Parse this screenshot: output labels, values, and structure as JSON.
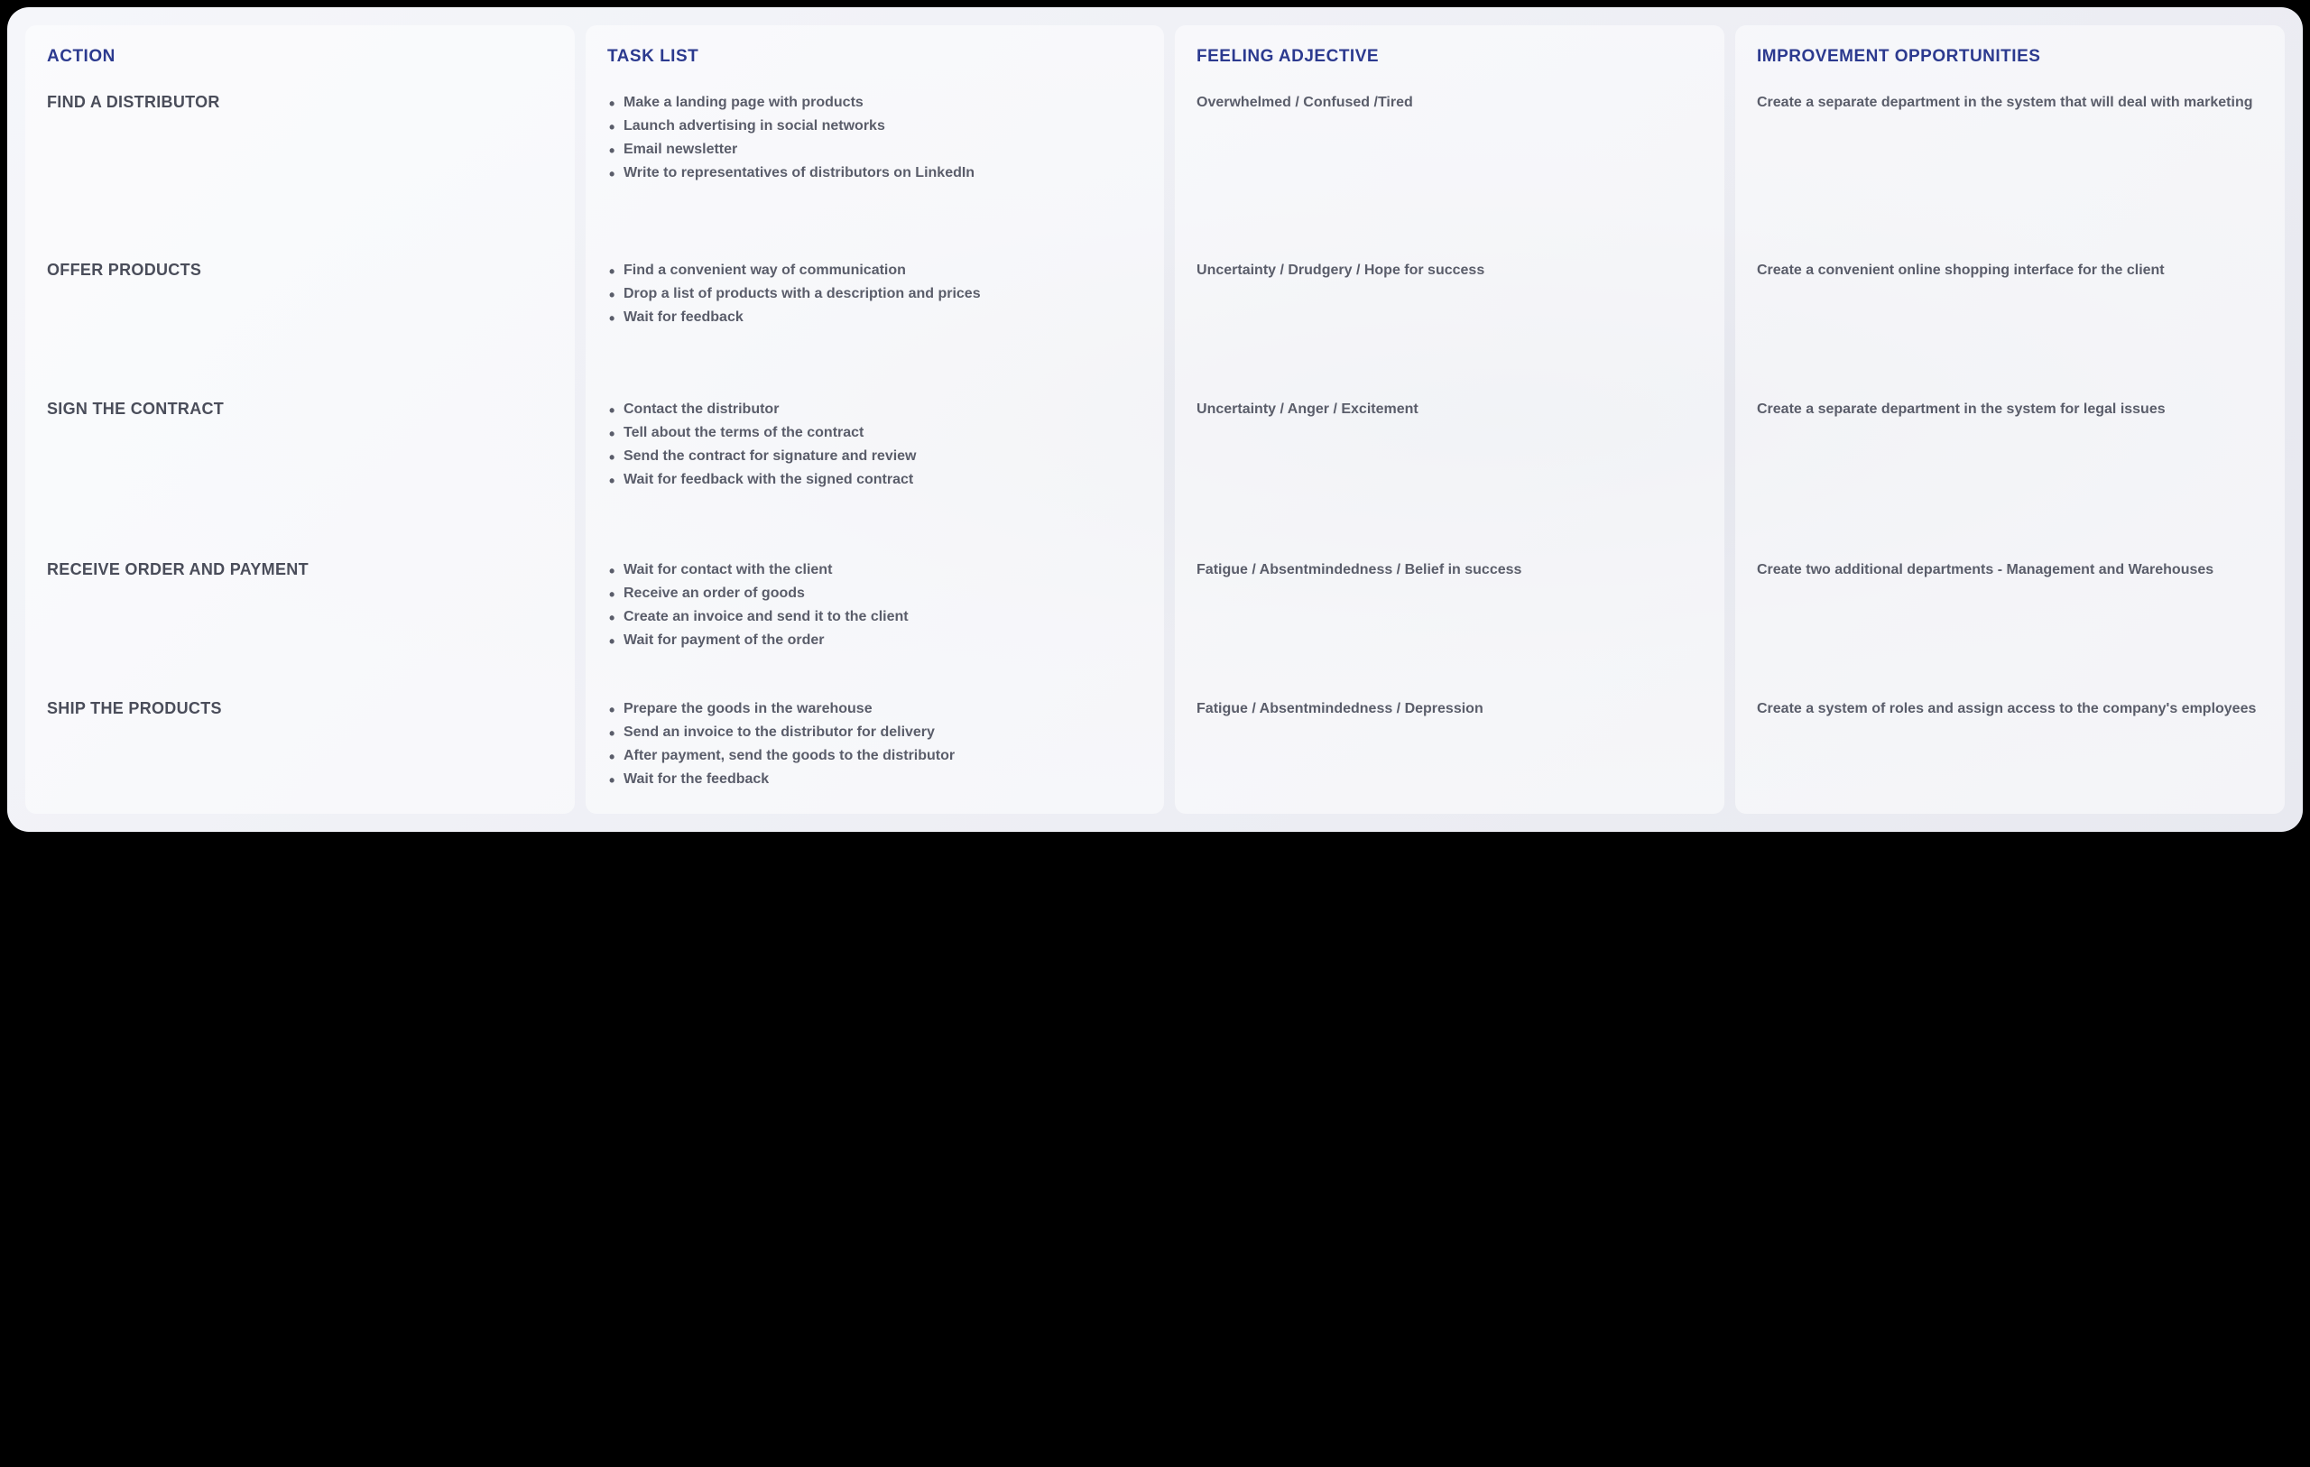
{
  "headers": {
    "action": "ACTION",
    "tasks": "TASK LIST",
    "feeling": "FEELING ADJECTIVE",
    "improvement": "IMPROVEMENT OPPORTUNITIES"
  },
  "rows": [
    {
      "action": "FIND A DISTRIBUTOR",
      "tasks": [
        "Make a landing page with products",
        "Launch advertising in social networks",
        "Email newsletter",
        "Write to representatives of distributors on LinkedIn"
      ],
      "feeling": "Overwhelmed / Confused /Tired",
      "improvement": "Create a separate department in the system that will deal with marketing"
    },
    {
      "action": "OFFER PRODUCTS",
      "tasks": [
        "Find a convenient way of communication",
        "Drop a list of products with a description and prices",
        "Wait for feedback"
      ],
      "feeling": "Uncertainty / Drudgery / Hope for success",
      "improvement": "Create a convenient online shopping interface for the client"
    },
    {
      "action": "SIGN THE CONTRACT",
      "tasks": [
        "Contact the distributor",
        "Tell about the terms of the contract",
        "Send the contract for signature and review",
        "Wait for feedback with the signed contract"
      ],
      "feeling": "Uncertainty / Anger / Excitement",
      "improvement": "Create a separate department in the system for legal issues"
    },
    {
      "action": "RECEIVE ORDER AND PAYMENT",
      "tasks": [
        "Wait for contact with the client",
        "Receive an order of goods",
        "Create an invoice and send it to the client",
        "Wait for payment of the order"
      ],
      "feeling": "Fatigue / Absentmindedness / Belief in success",
      "improvement": "Create two additional departments - Management and Warehouses"
    },
    {
      "action": "SHIP THE PRODUCTS",
      "tasks": [
        "Prepare the goods in the warehouse",
        "Send an invoice to the distributor for delivery",
        "After payment, send the goods to the distributor",
        "Wait for the feedback"
      ],
      "feeling": "Fatigue / Absentmindedness / Depression",
      "improvement": "Create a system of roles and assign access to the company's employees"
    }
  ],
  "styling": {
    "header_color": "#2c3a8f",
    "text_color": "#5a5d6a",
    "action_color": "#4a4d5a",
    "background": "#f5f6fa",
    "column_bg": "rgba(255,255,255,0.5)",
    "header_fontsize": 19,
    "action_fontsize": 18,
    "body_fontsize": 16,
    "border_radius": 24,
    "column_radius": 12,
    "columns": 4,
    "gap": 12
  }
}
